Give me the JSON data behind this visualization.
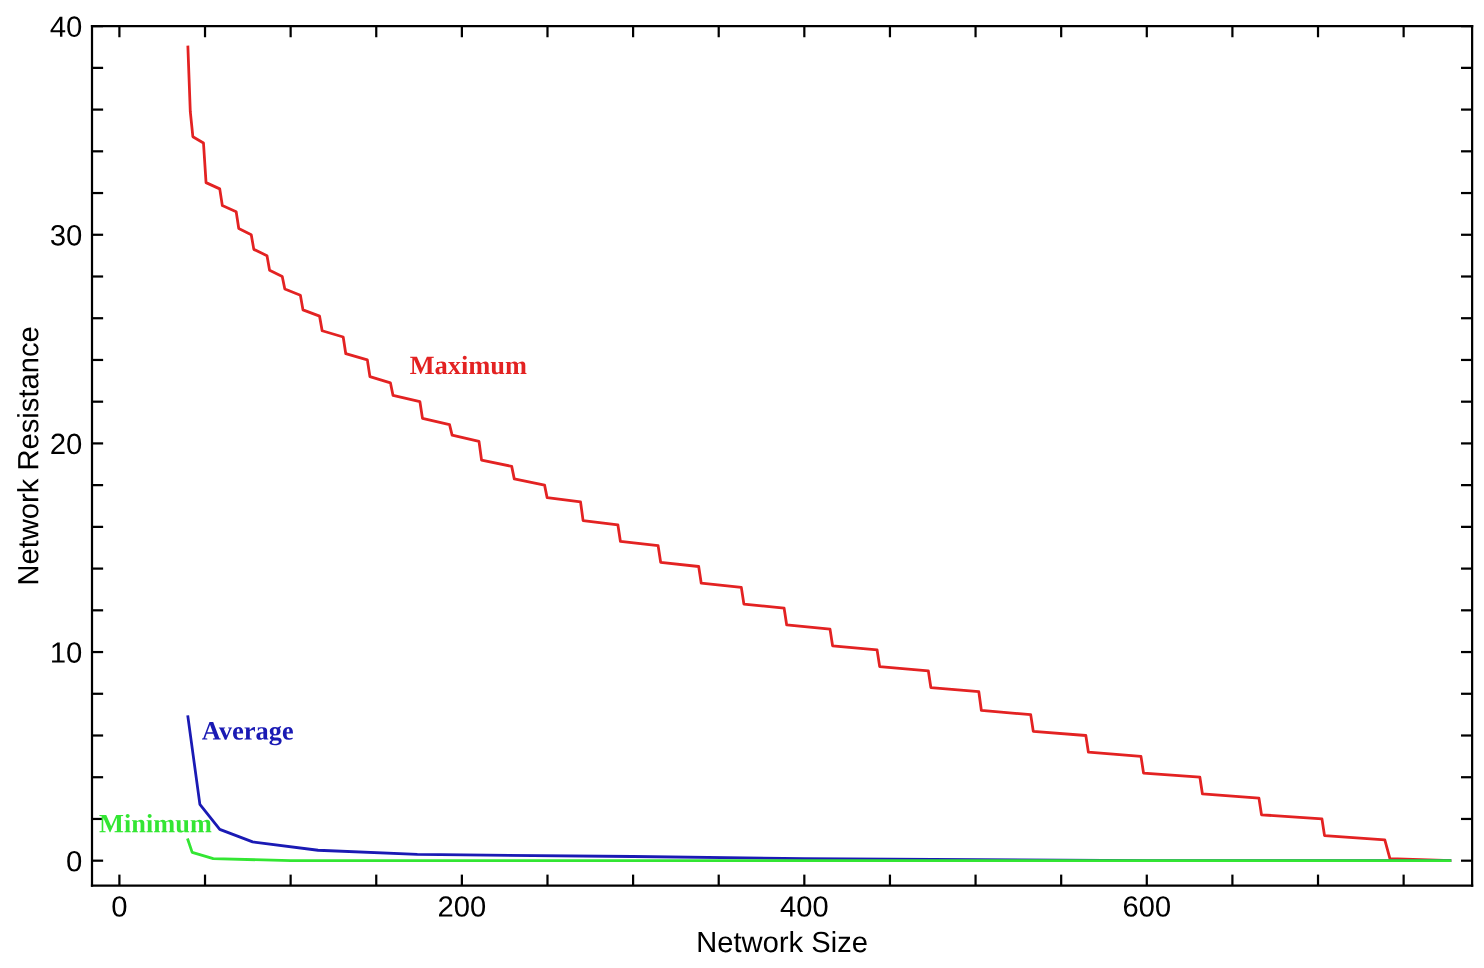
{
  "chart_data": {
    "type": "line",
    "xlabel": "Network Size",
    "ylabel": "Network Resistance",
    "series": [
      {
        "name": "Maximum",
        "color": "#e32222",
        "x": [
          40,
          41.4,
          42.9,
          49.1,
          50.6,
          58.6,
          60.1,
          68.2,
          69.7,
          77,
          78.5,
          86.2,
          87.7,
          95.1,
          96.6,
          105.7,
          107.2,
          116.9,
          118.4,
          130.7,
          132.2,
          144.8,
          146.3,
          158.3,
          159.8,
          175.5,
          177,
          192.8,
          194.3,
          210,
          211.5,
          229.1,
          230.6,
          248.3,
          249.8,
          269.3,
          270.8,
          291.1,
          292.6,
          314.6,
          316.1,
          338.3,
          339.8,
          363.2,
          364.7,
          388.2,
          389.7,
          415,
          416.5,
          442.5,
          444,
          472.4,
          473.9,
          501.9,
          503.4,
          532.2,
          533.7,
          564.4,
          565.9,
          596.6,
          598.1,
          631,
          632.5,
          665.5,
          667,
          702.3,
          703.8,
          739,
          742,
          777
        ],
        "values": [
          39,
          35.9,
          34.7,
          34.4,
          32.5,
          32.2,
          31.4,
          31.1,
          30.3,
          30,
          29.3,
          29,
          28.3,
          28,
          27.4,
          27.1,
          26.4,
          26.1,
          25.4,
          25.1,
          24.3,
          24,
          23.2,
          22.9,
          22.3,
          22,
          21.2,
          20.9,
          20.4,
          20.1,
          19.2,
          18.9,
          18.3,
          18,
          17.4,
          17.2,
          16.3,
          16.1,
          15.3,
          15.1,
          14.3,
          14.1,
          13.3,
          13.1,
          12.3,
          12.1,
          11.3,
          11.1,
          10.3,
          10.1,
          9.3,
          9.1,
          8.3,
          8.1,
          7.2,
          7,
          6.2,
          6,
          5.2,
          5,
          4.2,
          4,
          3.2,
          3,
          2.2,
          2,
          1.2,
          1,
          0.1,
          0
        ]
      },
      {
        "name": "Average",
        "color": "#1a1ab4",
        "x": [
          40,
          47,
          58.6,
          77.8,
          116,
          174,
          300,
          400,
          600,
          777
        ],
        "values": [
          6.9,
          2.7,
          1.5,
          0.9,
          0.5,
          0.3,
          0.2,
          0.1,
          0,
          0
        ]
      },
      {
        "name": "Minimum",
        "color": "#33e633",
        "x": [
          40,
          42.5,
          54.8,
          100,
          777
        ],
        "values": [
          1,
          0.4,
          0.1,
          0,
          0
        ]
      }
    ],
    "xlim": [
      -16,
      790
    ],
    "ylim": [
      -1.2,
      40
    ],
    "xticks": [
      0,
      {
        "value": 50,
        "label": null
      },
      {
        "value": 100,
        "label": null
      },
      {
        "value": 150,
        "label": null
      },
      200,
      {
        "value": 250,
        "label": null
      },
      {
        "value": 300,
        "label": null
      },
      {
        "value": 350,
        "label": null
      },
      400,
      {
        "value": 450,
        "label": null
      },
      {
        "value": 500,
        "label": null
      },
      {
        "value": 550,
        "label": null
      },
      600,
      {
        "value": 650,
        "label": null
      },
      {
        "value": 700,
        "label": null
      },
      {
        "value": 750,
        "label": null
      }
    ],
    "yticks": [
      0,
      {
        "value": 2,
        "label": null
      },
      {
        "value": 4,
        "label": null
      },
      {
        "value": 6,
        "label": null
      },
      {
        "value": 8,
        "label": null
      },
      10,
      {
        "value": 12,
        "label": null
      },
      {
        "value": 14,
        "label": null
      },
      {
        "value": 16,
        "label": null
      },
      {
        "value": 18,
        "label": null
      },
      20,
      {
        "value": 22,
        "label": null
      },
      {
        "value": 24,
        "label": null
      },
      {
        "value": 26,
        "label": null
      },
      {
        "value": 28,
        "label": null
      },
      30,
      {
        "value": 32,
        "label": null
      },
      {
        "value": 34,
        "label": null
      },
      {
        "value": 36,
        "label": null
      },
      {
        "value": 38,
        "label": null
      },
      40
    ],
    "grid": false,
    "legend": false,
    "marker": "none",
    "line_style": "solid"
  }
}
